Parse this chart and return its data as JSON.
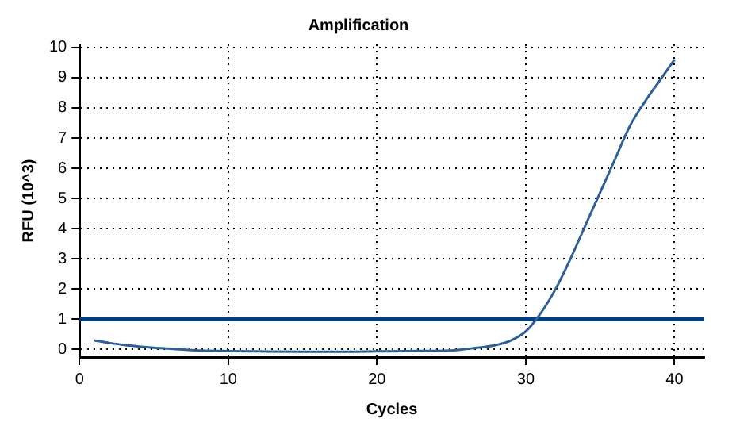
{
  "chart_data": {
    "type": "line",
    "title": "Amplification",
    "xlabel": "Cycles",
    "ylabel": "RFU (10^3)",
    "x": [
      1,
      2,
      3,
      4,
      5,
      6,
      7,
      8,
      10,
      12,
      15,
      18,
      20,
      22,
      25,
      26,
      27,
      28,
      29,
      30,
      31,
      32,
      33,
      34,
      35,
      36,
      37,
      38,
      39,
      40
    ],
    "series": [
      {
        "color": "#2f5f97",
        "values": [
          0.3,
          0.22,
          0.15,
          0.1,
          0.06,
          0.03,
          0.0,
          -0.03,
          -0.05,
          -0.06,
          -0.07,
          -0.07,
          -0.06,
          -0.05,
          -0.03,
          0.02,
          0.07,
          0.15,
          0.3,
          0.6,
          1.2,
          2.0,
          3.0,
          4.1,
          5.2,
          6.3,
          7.4,
          8.2,
          8.9,
          9.6
        ]
      }
    ],
    "ref_lines": [
      {
        "axis": "y",
        "value": 1,
        "color": "#003f7f"
      }
    ],
    "xlim": [
      0,
      42
    ],
    "xticks": [
      0,
      10,
      20,
      30,
      40
    ],
    "ylim": [
      -0.25,
      10.1
    ],
    "yticks": [
      0,
      1,
      2,
      3,
      4,
      5,
      6,
      7,
      8,
      9,
      10
    ],
    "grid": true,
    "legend": false,
    "marker": "none",
    "line_style": "solid"
  }
}
